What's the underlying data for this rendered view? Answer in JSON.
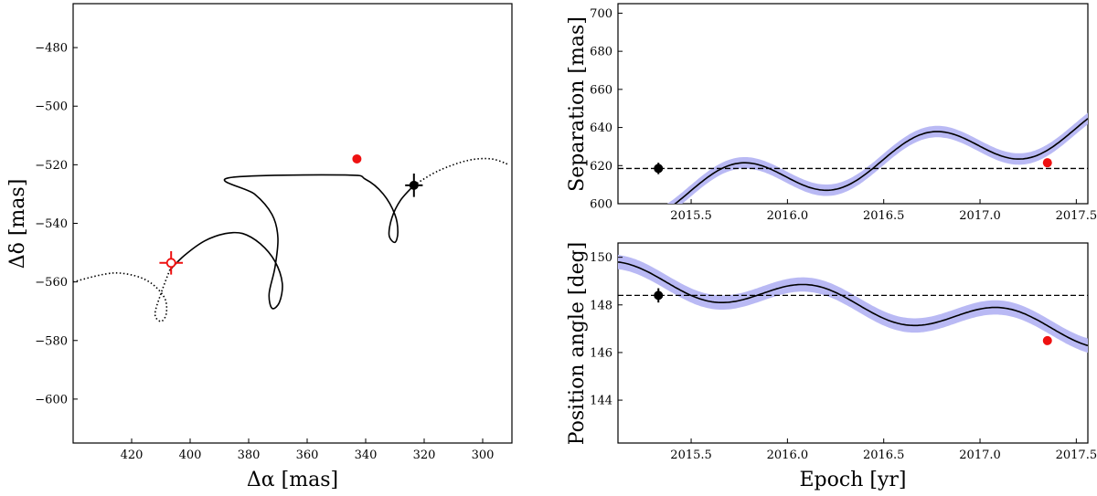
{
  "chart_data": [
    {
      "id": "orbit",
      "type": "scatter",
      "xlabel": "Δα [mas]",
      "ylabel": "Δδ [mas]",
      "xlim": [
        440,
        290
      ],
      "ylim": [
        -615,
        -465
      ],
      "xticks": [
        420,
        400,
        380,
        360,
        340,
        320,
        300
      ],
      "yticks": [
        -480,
        -500,
        -520,
        -540,
        -560,
        -580,
        -600
      ],
      "xtick_labels": [
        "420",
        "400",
        "380",
        "360",
        "340",
        "320",
        "300"
      ],
      "ytick_labels": [
        "−480",
        "−500",
        "−520",
        "−540",
        "−560",
        "−580",
        "−600"
      ],
      "orbit_dotted_before": [
        [
          440,
          -560
        ],
        [
          430,
          -557.5
        ],
        [
          424,
          -557
        ],
        [
          417,
          -558.5
        ],
        [
          412,
          -561.5
        ],
        [
          408.5,
          -566
        ],
        [
          408.2,
          -571
        ],
        [
          410,
          -573.5
        ],
        [
          412,
          -571
        ],
        [
          410,
          -564
        ],
        [
          407,
          -556
        ]
      ],
      "orbit_solid": [
        [
          407,
          -556
        ],
        [
          402,
          -551
        ],
        [
          395,
          -546
        ],
        [
          388,
          -543.5
        ],
        [
          382,
          -543.5
        ],
        [
          376,
          -547
        ],
        [
          371,
          -553
        ],
        [
          368.5,
          -560.5
        ],
        [
          369.5,
          -567
        ],
        [
          372,
          -569
        ],
        [
          373,
          -564
        ],
        [
          371,
          -555
        ],
        [
          370,
          -545
        ],
        [
          372,
          -537
        ],
        [
          378,
          -530
        ],
        [
          387,
          -524.5
        ],
        [
          347,
          -523.5
        ],
        [
          340,
          -525
        ],
        [
          334,
          -530
        ],
        [
          330,
          -537
        ],
        [
          329,
          -543
        ],
        [
          330,
          -546.5
        ],
        [
          332,
          -544
        ],
        [
          331,
          -538
        ],
        [
          328,
          -532
        ],
        [
          323.5,
          -527
        ]
      ],
      "orbit_dotted_after": [
        [
          323.5,
          -527
        ],
        [
          315,
          -522
        ],
        [
          305,
          -518.5
        ],
        [
          297,
          -518
        ],
        [
          291,
          -520
        ]
      ],
      "point_black": {
        "x": 323.5,
        "y": -527,
        "xerr": 3,
        "yerr": 4
      },
      "point_red_open": {
        "x": 406.5,
        "y": -553.5,
        "xerr": 4,
        "yerr": 4
      },
      "point_red": {
        "x": 343,
        "y": -518
      }
    },
    {
      "id": "separation",
      "type": "line",
      "xlabel": "",
      "ylabel": "Separation [mas]",
      "xlim": [
        2015.12,
        2017.56
      ],
      "ylim": [
        600,
        705
      ],
      "xticks": [
        2015.5,
        2016.0,
        2016.5,
        2017.0,
        2017.5
      ],
      "xtick_labels": [
        "2015.5",
        "2016.0",
        "2016.5",
        "2017.0",
        "2017.5"
      ],
      "yticks": [
        600,
        620,
        640,
        660,
        680,
        700
      ],
      "ytick_labels": [
        "600",
        "620",
        "640",
        "660",
        "680",
        "700"
      ],
      "model": {
        "base": 600,
        "trend": 40,
        "amp": 11,
        "phase": 0.37
      },
      "band_halfwidth": 3,
      "measurement": {
        "x": 2015.33,
        "y": 618.5,
        "yerr": 3
      },
      "reference_line": 618.5,
      "red_point": {
        "x": 2017.35,
        "y": 621.5
      }
    },
    {
      "id": "position-angle",
      "type": "line",
      "xlabel": "Epoch [yr]",
      "ylabel": "Position angle [deg]",
      "xlim": [
        2015.12,
        2017.56
      ],
      "ylim": [
        142.2,
        150.6
      ],
      "xticks": [
        2015.5,
        2016.0,
        2016.5,
        2017.0,
        2017.5
      ],
      "xtick_labels": [
        "2015.5",
        "2016.0",
        "2016.5",
        "2017.0",
        "2017.5"
      ],
      "yticks": [
        144,
        146,
        148,
        150
      ],
      "ytick_labels": [
        "144",
        "146",
        "148",
        "150"
      ],
      "model": {
        "base": 149.2,
        "trend": -2.35,
        "amp": 0.6,
        "phase": 0.75
      },
      "band_halfwidth": 0.3,
      "measurement": {
        "x": 2015.33,
        "y": 148.4,
        "yerr": 0.3
      },
      "reference_line": 148.4,
      "red_point": {
        "x": 2017.35,
        "y": 146.5
      }
    }
  ],
  "colors": {
    "band": "#b9b9f4",
    "line": "#000000",
    "red": "#ee1111"
  }
}
